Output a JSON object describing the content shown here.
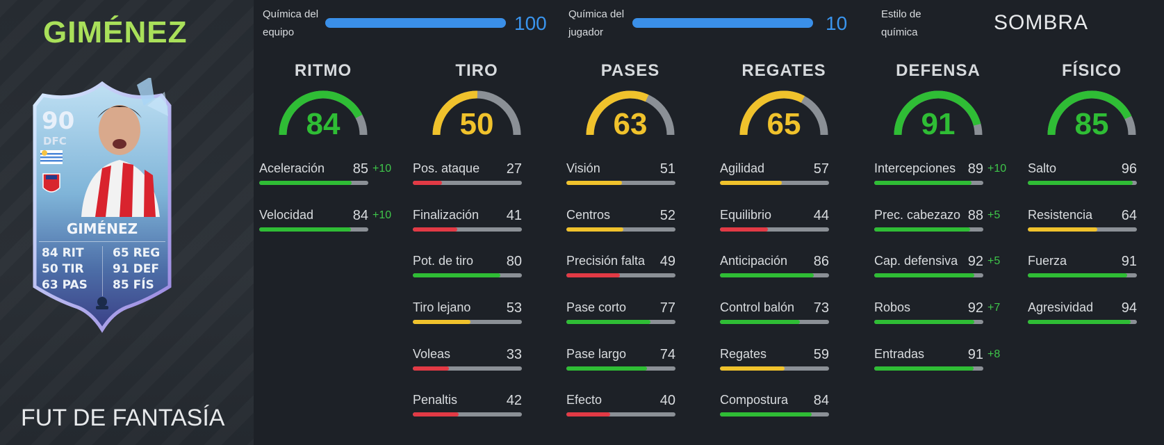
{
  "player": {
    "name": "GIMÉNEZ",
    "version": "FUT DE FANTASÍA"
  },
  "card": {
    "rating": "90",
    "position": "DFC",
    "name": "GIMÉNEZ",
    "stats_left": [
      {
        "value": "84",
        "label": "RIT"
      },
      {
        "value": "50",
        "label": "TIR"
      },
      {
        "value": "63",
        "label": "PAS"
      }
    ],
    "stats_right": [
      {
        "value": "65",
        "label": "REG"
      },
      {
        "value": "91",
        "label": "DEF"
      },
      {
        "value": "85",
        "label": "FÍS"
      }
    ]
  },
  "chemistry": {
    "team_label_1": "Química del",
    "team_label_2": "equipo",
    "team_value": "100",
    "team_fraction": 1.0,
    "player_label_1": "Química del",
    "player_label_2": "jugador",
    "player_value": "10",
    "player_fraction": 1.0,
    "style_label_1": "Estilo de",
    "style_label_2": "química",
    "style_value": "SOMBRA",
    "bar_color": "#3a8fe8"
  },
  "colors": {
    "green": "#2fbd35",
    "yellow": "#f0c22c",
    "red": "#e23a45",
    "gray": "#8b9096",
    "bonus": "#3fc64a",
    "name_green": "#a9e05a"
  },
  "categories": [
    {
      "title": "RITMO",
      "rating": "84",
      "rating_num": 84,
      "stats": [
        {
          "name": "Aceleración",
          "value": "85",
          "num": 85,
          "bonus": "+10"
        },
        {
          "name": "Velocidad",
          "value": "84",
          "num": 84,
          "bonus": "+10"
        }
      ]
    },
    {
      "title": "TIRO",
      "rating": "50",
      "rating_num": 50,
      "stats": [
        {
          "name": "Pos. ataque",
          "value": "27",
          "num": 27,
          "bonus": ""
        },
        {
          "name": "Finalización",
          "value": "41",
          "num": 41,
          "bonus": ""
        },
        {
          "name": "Pot. de tiro",
          "value": "80",
          "num": 80,
          "bonus": ""
        },
        {
          "name": "Tiro lejano",
          "value": "53",
          "num": 53,
          "bonus": ""
        },
        {
          "name": "Voleas",
          "value": "33",
          "num": 33,
          "bonus": ""
        },
        {
          "name": "Penaltis",
          "value": "42",
          "num": 42,
          "bonus": ""
        }
      ]
    },
    {
      "title": "PASES",
      "rating": "63",
      "rating_num": 63,
      "stats": [
        {
          "name": "Visión",
          "value": "51",
          "num": 51,
          "bonus": ""
        },
        {
          "name": "Centros",
          "value": "52",
          "num": 52,
          "bonus": ""
        },
        {
          "name": "Precisión falta",
          "value": "49",
          "num": 49,
          "bonus": ""
        },
        {
          "name": "Pase corto",
          "value": "77",
          "num": 77,
          "bonus": ""
        },
        {
          "name": "Pase largo",
          "value": "74",
          "num": 74,
          "bonus": ""
        },
        {
          "name": "Efecto",
          "value": "40",
          "num": 40,
          "bonus": ""
        }
      ]
    },
    {
      "title": "REGATES",
      "rating": "65",
      "rating_num": 65,
      "stats": [
        {
          "name": "Agilidad",
          "value": "57",
          "num": 57,
          "bonus": ""
        },
        {
          "name": "Equilibrio",
          "value": "44",
          "num": 44,
          "bonus": ""
        },
        {
          "name": "Anticipación",
          "value": "86",
          "num": 86,
          "bonus": ""
        },
        {
          "name": "Control balón",
          "value": "73",
          "num": 73,
          "bonus": ""
        },
        {
          "name": "Regates",
          "value": "59",
          "num": 59,
          "bonus": ""
        },
        {
          "name": "Compostura",
          "value": "84",
          "num": 84,
          "bonus": ""
        }
      ]
    },
    {
      "title": "DEFENSA",
      "rating": "91",
      "rating_num": 91,
      "stats": [
        {
          "name": "Intercepciones",
          "value": "89",
          "num": 89,
          "bonus": "+10"
        },
        {
          "name": "Prec. cabezazo",
          "value": "88",
          "num": 88,
          "bonus": "+5"
        },
        {
          "name": "Cap. defensiva",
          "value": "92",
          "num": 92,
          "bonus": "+5"
        },
        {
          "name": "Robos",
          "value": "92",
          "num": 92,
          "bonus": "+7"
        },
        {
          "name": "Entradas",
          "value": "91",
          "num": 91,
          "bonus": "+8"
        }
      ]
    },
    {
      "title": "FÍSICO",
      "rating": "85",
      "rating_num": 85,
      "stats": [
        {
          "name": "Salto",
          "value": "96",
          "num": 96,
          "bonus": ""
        },
        {
          "name": "Resistencia",
          "value": "64",
          "num": 64,
          "bonus": ""
        },
        {
          "name": "Fuerza",
          "value": "91",
          "num": 91,
          "bonus": ""
        },
        {
          "name": "Agresividad",
          "value": "94",
          "num": 94,
          "bonus": ""
        }
      ]
    }
  ]
}
